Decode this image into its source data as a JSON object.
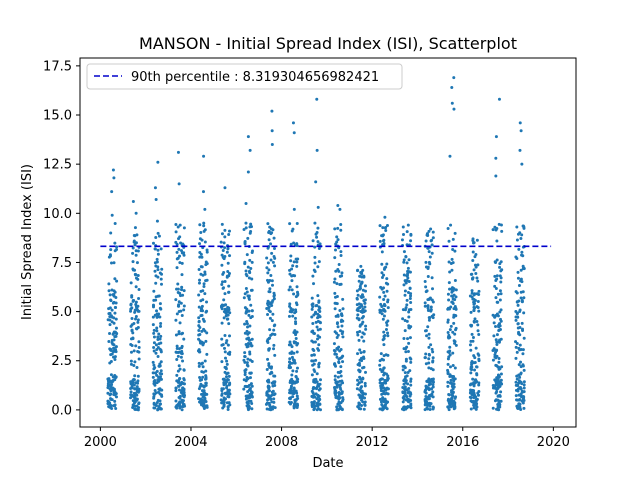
{
  "chart_data": {
    "type": "scatter",
    "title": "MANSON - Initial Spread Index (ISI), Scatterplot",
    "xlabel": "Date",
    "ylabel": "Initial Spread Index (ISI)",
    "xlim": [
      1999.1,
      2021.0
    ],
    "ylim": [
      -0.87,
      17.9
    ],
    "x_ticks": [
      2000,
      2004,
      2008,
      2012,
      2016,
      2020
    ],
    "x_tick_labels": [
      "2000",
      "2004",
      "2008",
      "2012",
      "2016",
      "2020"
    ],
    "y_ticks": [
      0.0,
      2.5,
      5.0,
      7.5,
      10.0,
      12.5,
      15.0,
      17.5
    ],
    "y_tick_labels": [
      "0.0",
      "2.5",
      "5.0",
      "7.5",
      "10.0",
      "12.5",
      "15.0",
      "17.5"
    ],
    "legend": {
      "placement": "top-left",
      "entries": [
        {
          "label": "90th percentile : 8.319304656982421",
          "style": "dashed",
          "color": "#0000cc"
        }
      ]
    },
    "reference_line": {
      "y": 8.319304656982421,
      "color": "#0000cc",
      "style": "dashed"
    },
    "point_color": "#1f77b4",
    "seasons": [
      {
        "start": 2000.33,
        "end": 2000.72,
        "max": 12.2,
        "peaks": [
          12.2,
          11.8,
          11.1,
          9.9,
          9.0
        ]
      },
      {
        "start": 2001.33,
        "end": 2001.72,
        "max": 10.6,
        "peaks": [
          10.6,
          10.0,
          8.9,
          8.5
        ]
      },
      {
        "start": 2002.33,
        "end": 2002.72,
        "max": 12.6,
        "peaks": [
          12.6,
          11.3,
          10.7,
          9.6
        ]
      },
      {
        "start": 2003.33,
        "end": 2003.72,
        "max": 13.1,
        "peaks": [
          13.1,
          11.5,
          9.4,
          8.8
        ]
      },
      {
        "start": 2004.33,
        "end": 2004.72,
        "max": 12.9,
        "peaks": [
          12.9,
          11.1,
          10.2,
          9.5
        ]
      },
      {
        "start": 2005.33,
        "end": 2005.72,
        "max": 11.3,
        "peaks": [
          11.3,
          8.8,
          7.8
        ]
      },
      {
        "start": 2006.33,
        "end": 2006.72,
        "max": 13.9,
        "peaks": [
          13.9,
          13.2,
          12.1,
          10.5
        ]
      },
      {
        "start": 2007.33,
        "end": 2007.72,
        "max": 15.2,
        "peaks": [
          15.2,
          14.2,
          13.5,
          9.3
        ]
      },
      {
        "start": 2008.33,
        "end": 2008.72,
        "max": 14.6,
        "peaks": [
          14.6,
          14.1,
          10.2,
          9.1
        ]
      },
      {
        "start": 2009.33,
        "end": 2009.72,
        "max": 15.8,
        "peaks": [
          15.8,
          13.2,
          11.6,
          10.3
        ]
      },
      {
        "start": 2010.33,
        "end": 2010.72,
        "max": 10.4,
        "peaks": [
          10.4,
          10.2,
          8.8
        ]
      },
      {
        "start": 2011.33,
        "end": 2011.72,
        "max": 7.3,
        "peaks": [
          7.3,
          7.1,
          6.8
        ]
      },
      {
        "start": 2012.33,
        "end": 2012.72,
        "max": 9.8,
        "peaks": [
          9.8,
          8.9,
          8.6
        ]
      },
      {
        "start": 2013.33,
        "end": 2013.72,
        "max": 9.4,
        "peaks": [
          9.4,
          8.4,
          7.8
        ]
      },
      {
        "start": 2014.33,
        "end": 2014.72,
        "max": 9.2,
        "peaks": [
          9.2,
          8.9,
          8.6
        ]
      },
      {
        "start": 2015.33,
        "end": 2015.72,
        "max": 16.9,
        "peaks": [
          16.9,
          16.4,
          15.6,
          15.3,
          12.9
        ]
      },
      {
        "start": 2016.33,
        "end": 2016.72,
        "max": 8.7,
        "peaks": [
          8.7,
          7.6
        ]
      },
      {
        "start": 2017.33,
        "end": 2017.72,
        "max": 15.8,
        "peaks": [
          15.8,
          13.9,
          12.8,
          11.9
        ]
      },
      {
        "start": 2018.33,
        "end": 2018.72,
        "max": 14.6,
        "peaks": [
          14.6,
          14.2,
          13.2,
          12.5
        ]
      }
    ]
  }
}
